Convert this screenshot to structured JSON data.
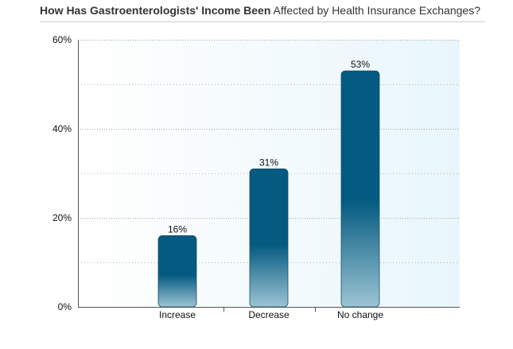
{
  "chart_data": {
    "type": "bar",
    "title_bold": "How Has Gastroenterologists' Income Been",
    "title_rest": " Affected by Health Insurance Exchanges?",
    "categories": [
      "Increase",
      "Decrease",
      "No change"
    ],
    "values": [
      16,
      31,
      53
    ],
    "data_labels": [
      "16%",
      "31%",
      "53%"
    ],
    "ylim": [
      0,
      60
    ],
    "yticks": [
      0,
      20,
      40,
      60
    ],
    "ytick_labels": [
      "0%",
      "20%",
      "40%",
      "60%"
    ],
    "grid": true,
    "xlabel": "",
    "ylabel": "",
    "colors": {
      "bar_top": "#045a80",
      "bar_bottom": "#9cc4d4",
      "plot_bg_left": "#ffffff",
      "plot_bg_right": "#e8f6fb",
      "grid": "#999999",
      "axis": "#555555"
    }
  }
}
